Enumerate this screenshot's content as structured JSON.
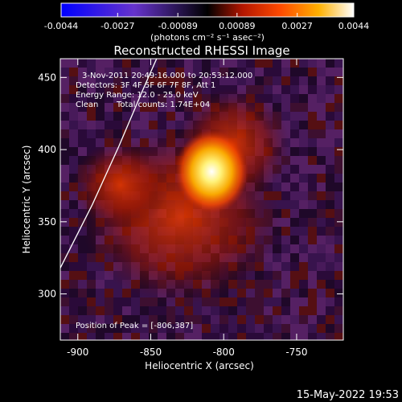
{
  "colorbar": {
    "min": -0.0044,
    "max": 0.0044,
    "tick_labels": [
      "-0.0044",
      "-0.0027",
      "-0.00089",
      "0.00089",
      "0.0027",
      "0.0044"
    ],
    "units": "(photons cm⁻² s⁻¹ asec⁻²)"
  },
  "chart_data": {
    "type": "heatmap",
    "title": "Reconstructed RHESSI Image",
    "xlabel": "Heliocentric X (arcsec)",
    "ylabel": "Heliocentric Y (arcsec)",
    "xlim": [
      -912,
      -718
    ],
    "ylim": [
      268,
      463
    ],
    "x_ticks": [
      -900,
      -850,
      -800,
      -750
    ],
    "y_ticks": [
      300,
      350,
      400,
      450
    ],
    "x_tick_labels": [
      "-900",
      "-850",
      "-800",
      "-750"
    ],
    "y_tick_labels": [
      "300",
      "350",
      "400",
      "450"
    ],
    "peak": {
      "x": -806,
      "y": 387
    },
    "limb_points": [
      [
        -912,
        318
      ],
      [
        -890,
        362
      ],
      [
        -872,
        402
      ],
      [
        -856,
        440
      ],
      [
        -846,
        463
      ]
    ],
    "annotations": {
      "time": "3-Nov-2011 20:49:16.000 to 20:53:12.000",
      "detectors": "Detectors: 3F 4F 5F 6F 7F 8F, Att 1",
      "energy": "Energy Range: 12.0 - 25.0 keV",
      "clean_label": "Clean",
      "total_counts": "Total counts: 1.74E+04",
      "peak_label": "Position of Peak = [-806,387]"
    }
  },
  "footer": {
    "timestamp": "15-May-2022 19:53"
  }
}
